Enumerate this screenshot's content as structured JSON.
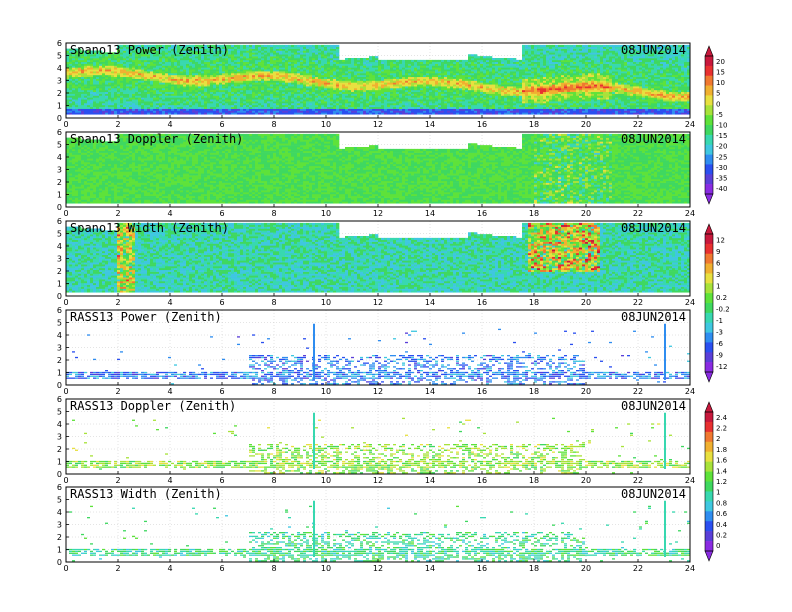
{
  "palette": [
    "#8a2be2",
    "#5a3fd8",
    "#2b4ff0",
    "#2f8df0",
    "#3fc7e0",
    "#38d8b0",
    "#3fd860",
    "#5ee23a",
    "#a8e23a",
    "#e8e040",
    "#f0b030",
    "#f07830",
    "#e83030",
    "#c8183c"
  ],
  "colorbars": [
    {
      "for_panels": "0-1",
      "labels": [
        "20",
        "15",
        "10",
        "5",
        "0",
        "-5",
        "-10",
        "-15",
        "-20",
        "-25",
        "-30",
        "-35",
        "-40"
      ]
    },
    {
      "for_panels": "2-3",
      "labels": [
        "12",
        "9",
        "6",
        "3",
        "1",
        "0.2",
        "-0.2",
        "-1",
        "-3",
        "-6",
        "-9",
        "-12"
      ]
    },
    {
      "for_panels": "4-5",
      "labels": [
        "2.4",
        "2.2",
        "2",
        "1.8",
        "1.6",
        "1.4",
        "1.2",
        "1",
        "0.8",
        "0.6",
        "0.4",
        "0.2",
        "0"
      ]
    }
  ],
  "chart_data": [
    {
      "type": "heatmap",
      "title": "Spano13 Power (Zenith)",
      "date": "08JUN2014",
      "xlim": [
        0,
        24
      ],
      "ylim": [
        0,
        6
      ],
      "x_ticks": [
        "0",
        "2",
        "4",
        "6",
        "8",
        "10",
        "12",
        "14",
        "16",
        "18",
        "20",
        "22",
        "24"
      ],
      "y_ticks": [
        "0",
        "1",
        "2",
        "3",
        "4",
        "5",
        "6"
      ],
      "grid": true
    },
    {
      "type": "heatmap",
      "title": "Spano13 Doppler (Zenith)",
      "date": "08JUN2014",
      "xlim": [
        0,
        24
      ],
      "ylim": [
        0,
        6
      ],
      "x_ticks": [
        "0",
        "2",
        "4",
        "6",
        "8",
        "10",
        "12",
        "14",
        "16",
        "18",
        "20",
        "22",
        "24"
      ],
      "y_ticks": [
        "0",
        "1",
        "2",
        "3",
        "4",
        "5",
        "6"
      ],
      "grid": true
    },
    {
      "type": "heatmap",
      "title": "Spano13 Width (Zenith)",
      "date": "08JUN2014",
      "xlim": [
        0,
        24
      ],
      "ylim": [
        0,
        6
      ],
      "x_ticks": [
        "0",
        "2",
        "4",
        "6",
        "8",
        "10",
        "12",
        "14",
        "16",
        "18",
        "20",
        "22",
        "24"
      ],
      "y_ticks": [
        "0",
        "1",
        "2",
        "3",
        "4",
        "5",
        "6"
      ],
      "grid": true
    },
    {
      "type": "heatmap",
      "title": "RASS13 Power (Zenith)",
      "date": "08JUN2014",
      "xlim": [
        0,
        24
      ],
      "ylim": [
        0,
        6
      ],
      "x_ticks": [
        "0",
        "2",
        "4",
        "6",
        "8",
        "10",
        "12",
        "14",
        "16",
        "18",
        "20",
        "22",
        "24"
      ],
      "y_ticks": [
        "0",
        "1",
        "2",
        "3",
        "4",
        "5",
        "6"
      ],
      "grid": true
    },
    {
      "type": "heatmap",
      "title": "RASS13 Doppler (Zenith)",
      "date": "08JUN2014",
      "xlim": [
        0,
        24
      ],
      "ylim": [
        0,
        6
      ],
      "x_ticks": [
        "0",
        "2",
        "4",
        "6",
        "8",
        "10",
        "12",
        "14",
        "16",
        "18",
        "20",
        "22",
        "24"
      ],
      "y_ticks": [
        "0",
        "1",
        "2",
        "3",
        "4",
        "5",
        "6"
      ],
      "grid": true
    },
    {
      "type": "heatmap",
      "title": "RASS13 Width (Zenith)",
      "date": "08JUN2014",
      "xlim": [
        0,
        24
      ],
      "ylim": [
        0,
        6
      ],
      "x_ticks": [
        "0",
        "2",
        "4",
        "6",
        "8",
        "10",
        "12",
        "14",
        "16",
        "18",
        "20",
        "22",
        "24"
      ],
      "y_ticks": [
        "0",
        "1",
        "2",
        "3",
        "4",
        "5",
        "6"
      ],
      "grid": true
    }
  ]
}
